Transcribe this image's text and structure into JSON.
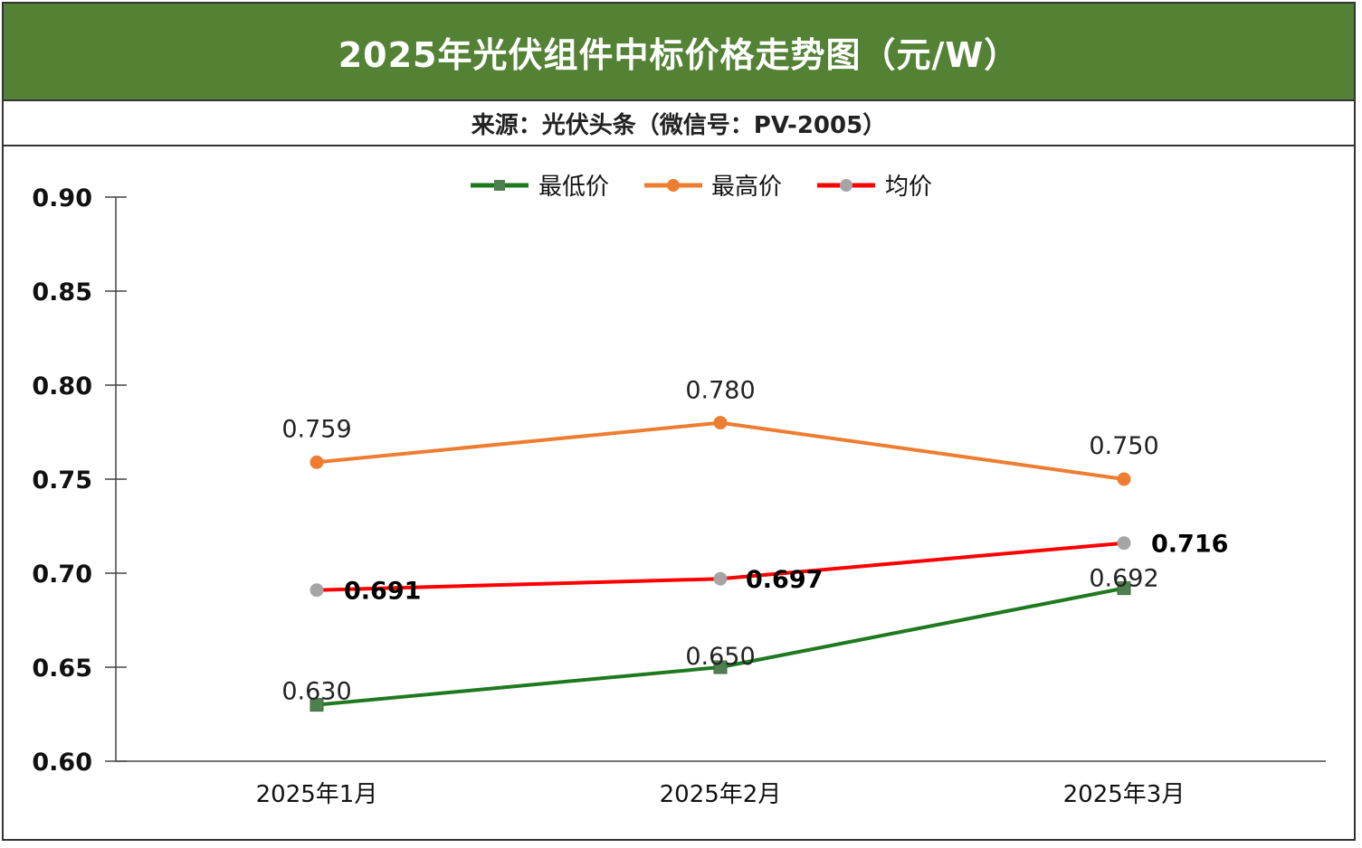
{
  "header": {
    "title": "2025年光伏组件中标价格走势图（元/W）",
    "source": "来源：光伏头条（微信号：PV-2005）"
  },
  "chart_data": {
    "type": "line",
    "title": "2025年光伏组件中标价格走势图（元/W）",
    "subtitle": "来源：光伏头条（微信号：PV-2005）",
    "categories": [
      "2025年1月",
      "2025年2月",
      "2025年3月"
    ],
    "series": [
      {
        "name": "最低价",
        "values": [
          0.63,
          0.65,
          0.692
        ],
        "labels": [
          "0.630",
          "0.650",
          "0.692"
        ],
        "color": "#1f7a1f",
        "marker": "square",
        "marker_color": "#4f7f4f",
        "bold_labels": false
      },
      {
        "name": "最高价",
        "values": [
          0.759,
          0.78,
          0.75
        ],
        "labels": [
          "0.759",
          "0.780",
          "0.750"
        ],
        "color": "#ed7d31",
        "marker": "circle",
        "marker_color": "#ed7d31",
        "bold_labels": false
      },
      {
        "name": "均价",
        "values": [
          0.691,
          0.697,
          0.716
        ],
        "labels": [
          "0.691",
          "0.697",
          "0.716"
        ],
        "color": "#ff0000",
        "marker": "circle",
        "marker_color": "#a5a5a5",
        "bold_labels": true
      }
    ],
    "yticks": [
      "0.60",
      "0.65",
      "0.70",
      "0.75",
      "0.80",
      "0.85",
      "0.90"
    ],
    "ylim": [
      0.6,
      0.9
    ],
    "grid": false,
    "legend": "top-center",
    "xlabel": "",
    "ylabel": ""
  }
}
